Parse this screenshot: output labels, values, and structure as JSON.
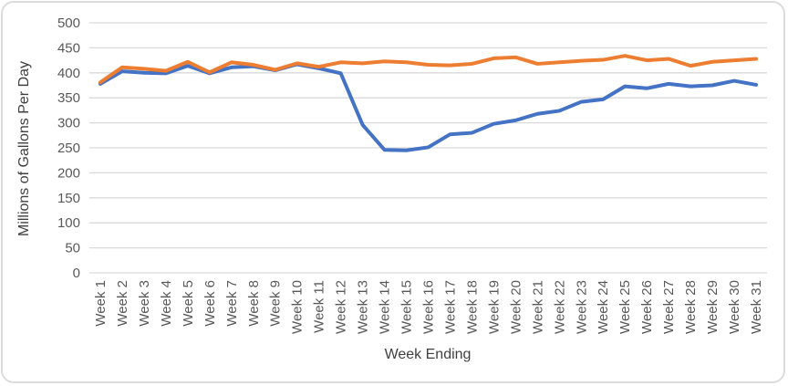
{
  "chart_data": {
    "type": "line",
    "title": "",
    "xlabel": "Week Ending",
    "ylabel": "Millions of Gallons Per Day",
    "ylim": [
      0,
      500
    ],
    "ytick_interval": 50,
    "yticks": [
      "0",
      "50",
      "100",
      "150",
      "200",
      "250",
      "300",
      "350",
      "400",
      "450",
      "500"
    ],
    "grid": "horizontal",
    "legend_position": "none",
    "marker": "none",
    "categories": [
      "Week 1",
      "Week 2",
      "Week 3",
      "Week 4",
      "Week 5",
      "Week 6",
      "Week 7",
      "Week 8",
      "Week 9",
      "Week 10",
      "Week 11",
      "Week 12",
      "Week 13",
      "Week 14",
      "Week 15",
      "Week 16",
      "Week 17",
      "Week 18",
      "Week 19",
      "Week 20",
      "Week 21",
      "Week 22",
      "Week 23",
      "Week 24",
      "Week 25",
      "Week 26",
      "Week 27",
      "Week 28",
      "Week 29",
      "Week 30",
      "Week 31"
    ],
    "series": [
      {
        "name": "series-1-blue",
        "color": "#4472C4",
        "values": [
          378,
          403,
          400,
          399,
          414,
          399,
          411,
          413,
          405,
          417,
          409,
          399,
          296,
          246,
          245,
          251,
          277,
          280,
          298,
          305,
          318,
          324,
          342,
          347,
          373,
          369,
          378,
          373,
          375,
          384,
          376
        ]
      },
      {
        "name": "series-2-orange",
        "color": "#ED7D31",
        "values": [
          381,
          411,
          408,
          404,
          422,
          401,
          421,
          416,
          406,
          419,
          412,
          421,
          419,
          423,
          421,
          416,
          415,
          418,
          429,
          431,
          418,
          421,
          424,
          426,
          434,
          425,
          428,
          414,
          422,
          425,
          428
        ]
      }
    ],
    "styles": {
      "gridline_color": "#D9D9D9",
      "axis_line_color": "#D9D9D9",
      "tick_label_color": "#595959",
      "axis_title_color": "#404040",
      "frame_border_color": "#DCDCDC",
      "background": "#FFFFFF"
    }
  }
}
